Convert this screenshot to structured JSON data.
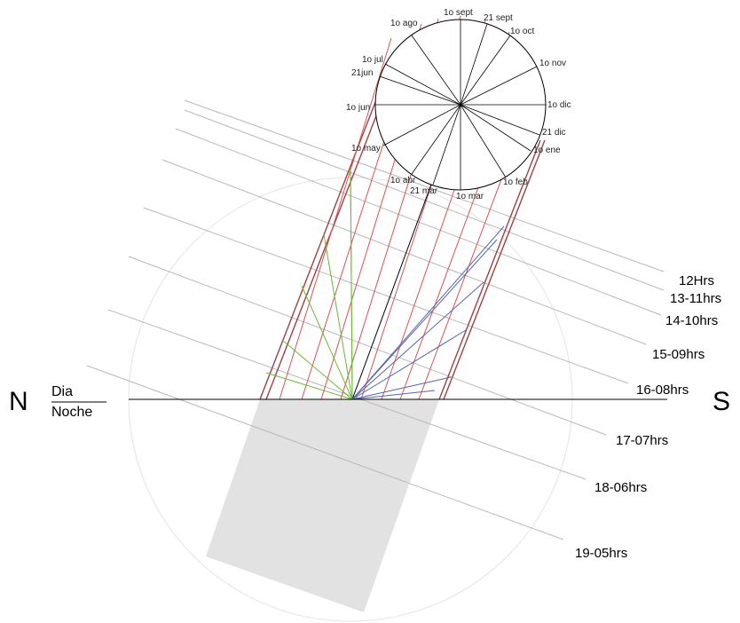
{
  "cardinal": {
    "north": "N",
    "south": "S"
  },
  "horizon": {
    "day_label": "Dia",
    "night_label": "Noche"
  },
  "hour_labels": [
    "12Hrs",
    "13-11hrs",
    "14-10hrs",
    "15-09hrs",
    "16-08hrs",
    "17-07hrs",
    "18-06hrs",
    "19-05hrs"
  ],
  "month_labels": [
    "1o sept",
    "21 sept",
    "1o oct",
    "1o nov",
    "1o dic",
    "21 dic",
    "1o ene",
    "1o feb",
    "1o mar",
    "21 mar",
    "1o abr",
    "1o may",
    "1o jun",
    "21jun",
    "1o jul",
    "1o ago"
  ],
  "colors": {
    "month_lines": "#e05050",
    "band_edges": "#a04040",
    "summer_lines": "#66bb33",
    "winter_lines": "#5566aa",
    "hour_lines": "#b8b8b8",
    "night_block": "#e2e2e2",
    "horizon": "#000000"
  }
}
